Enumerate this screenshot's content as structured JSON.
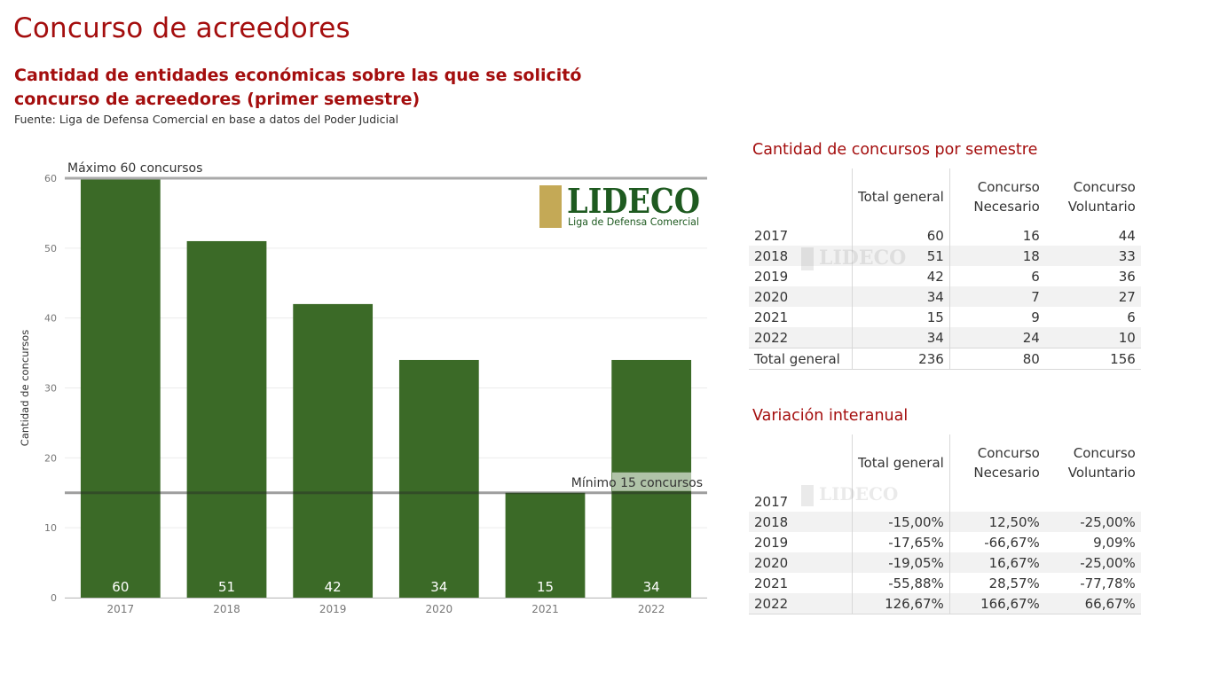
{
  "title": "Concurso de acreedores",
  "subtitle": "Cantidad de entidades económicas sobre las que se solicitó concurso de acreedores (primer semestre)",
  "source": "Fuente: Liga de Defensa Comercial en base a datos del Poder Judicial",
  "logo": {
    "name": "LIDECO",
    "tagline": "Liga de Defensa Comercial",
    "gold": "#c4a956",
    "green": "#1e5a20"
  },
  "chart_data": {
    "type": "bar",
    "categories": [
      "2017",
      "2018",
      "2019",
      "2020",
      "2021",
      "2022"
    ],
    "values": [
      60,
      51,
      42,
      34,
      15,
      34
    ],
    "ylabel": "Cantidad de concursos",
    "ylim": [
      0,
      60
    ],
    "yticks": [
      0,
      10,
      20,
      30,
      40,
      50,
      60
    ],
    "bar_color": "#3b6a27",
    "reference_lines": [
      {
        "value": 60,
        "label": "Máximo 60 concursos"
      },
      {
        "value": 15,
        "label": "Mínimo 15 concursos"
      }
    ],
    "grid": true
  },
  "table1": {
    "title": "Cantidad de concursos por semestre",
    "headers": [
      "Total general",
      "Concurso Necesario",
      "Concurso Voluntario"
    ],
    "rows": [
      [
        "2017",
        "60",
        "16",
        "44"
      ],
      [
        "2018",
        "51",
        "18",
        "33"
      ],
      [
        "2019",
        "42",
        "6",
        "36"
      ],
      [
        "2020",
        "34",
        "7",
        "27"
      ],
      [
        "2021",
        "15",
        "9",
        "6"
      ],
      [
        "2022",
        "34",
        "24",
        "10"
      ]
    ],
    "total": [
      "Total general",
      "236",
      "80",
      "156"
    ]
  },
  "table2": {
    "title": "Variación interanual",
    "headers": [
      "Total general",
      "Concurso Necesario",
      "Concurso Voluntario"
    ],
    "rows": [
      [
        "2017",
        "",
        "",
        ""
      ],
      [
        "2018",
        "-15,00%",
        "12,50%",
        "-25,00%"
      ],
      [
        "2019",
        "-17,65%",
        "-66,67%",
        "9,09%"
      ],
      [
        "2020",
        "-19,05%",
        "16,67%",
        "-25,00%"
      ],
      [
        "2021",
        "-55,88%",
        "28,57%",
        "-77,78%"
      ],
      [
        "2022",
        "126,67%",
        "166,67%",
        "66,67%"
      ]
    ]
  }
}
